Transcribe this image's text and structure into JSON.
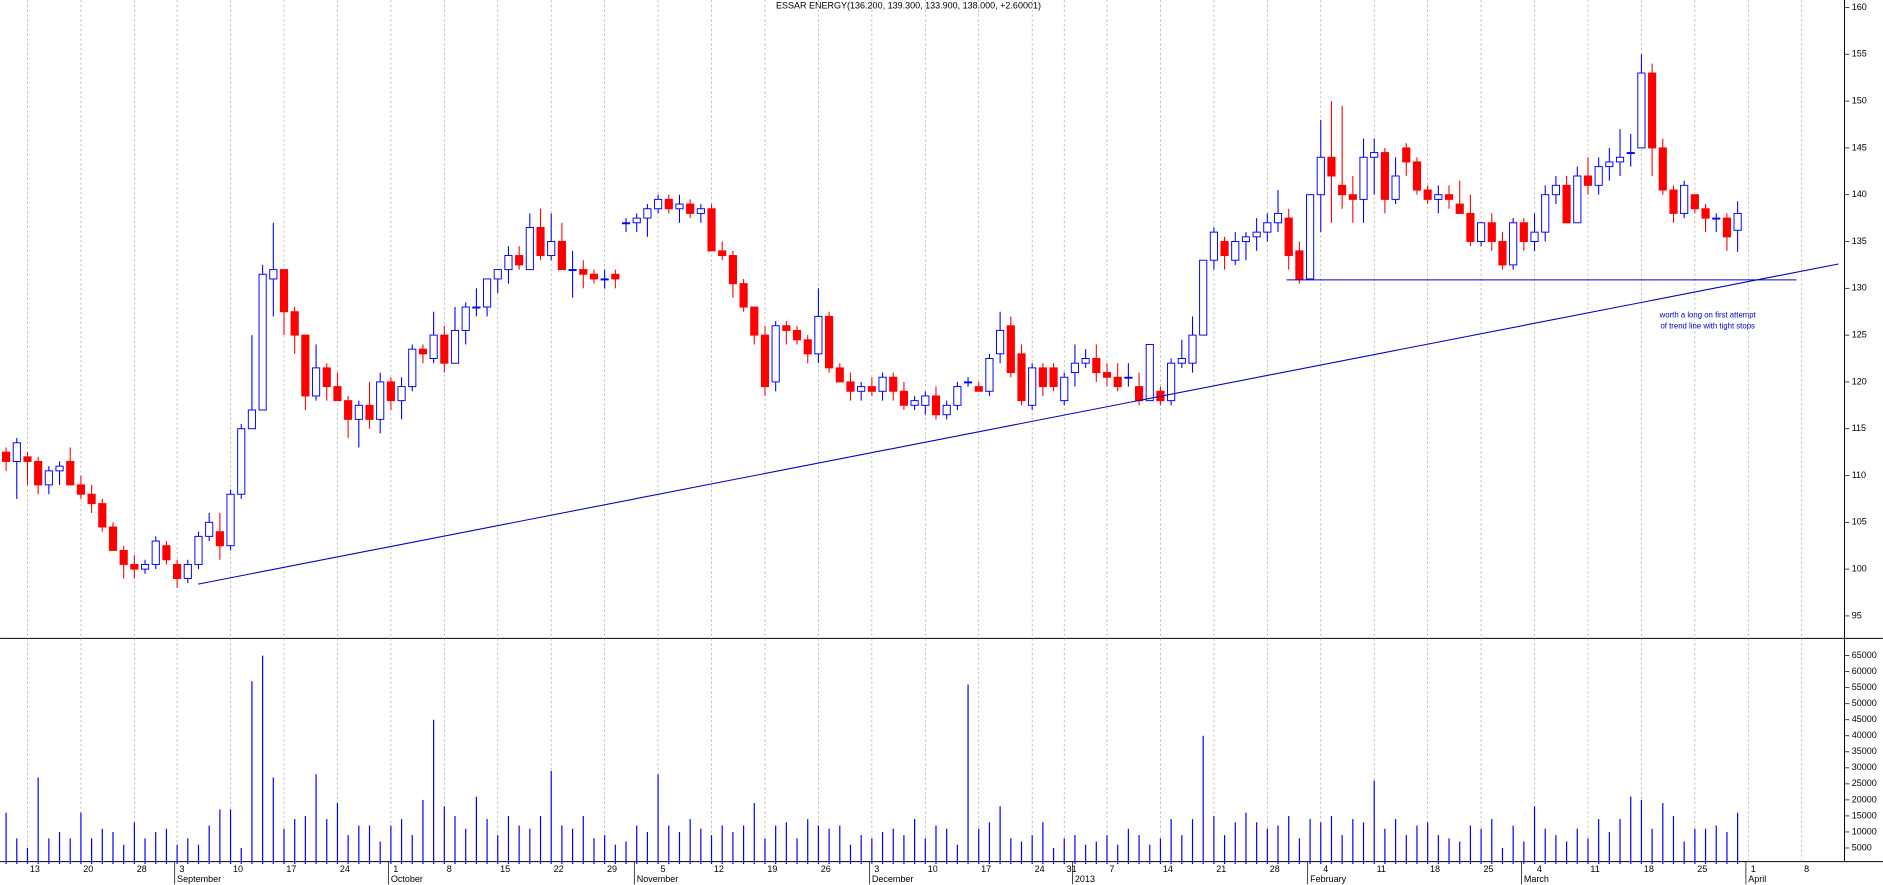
{
  "chart_data": [
    {
      "type": "candlestick",
      "title": "ESSAR ENERGY(136.200, 139.300, 133.900, 138.000, +2.60001)",
      "annotation": [
        "worth a long on first attempt",
        "of trend line with tight stops"
      ],
      "up_color": "#0000ff",
      "down_color": "#ff0000",
      "grid": true,
      "ylim": [
        92.6,
        160.8
      ],
      "yticks": [
        95,
        100,
        105,
        110,
        115,
        120,
        125,
        130,
        135,
        140,
        145,
        150,
        155,
        160
      ],
      "trendlines": [
        {
          "color": "#0000cc",
          "values": [
            98.4,
            132.6
          ]
        },
        {
          "color": "#0000cc",
          "values": [
            130.9,
            130.9
          ]
        }
      ],
      "categories": [
        null,
        null,
        "13",
        null,
        null,
        null,
        null,
        "20",
        null,
        null,
        null,
        null,
        "28",
        null,
        null,
        null,
        "3",
        null,
        null,
        null,
        null,
        "10",
        null,
        null,
        null,
        null,
        "17",
        null,
        null,
        null,
        null,
        "24",
        null,
        null,
        null,
        null,
        "1",
        null,
        null,
        null,
        null,
        "8",
        null,
        null,
        null,
        null,
        "15",
        null,
        null,
        null,
        null,
        "22",
        null,
        null,
        null,
        null,
        "29",
        null,
        null,
        null,
        null,
        "5",
        null,
        null,
        null,
        null,
        "12",
        null,
        null,
        null,
        null,
        "19",
        null,
        null,
        null,
        null,
        "26",
        null,
        null,
        null,
        null,
        "3",
        null,
        null,
        null,
        null,
        "10",
        null,
        null,
        null,
        null,
        "17",
        null,
        null,
        null,
        null,
        "24",
        null,
        null,
        "31",
        null,
        null,
        null,
        "7",
        null,
        null,
        null,
        null,
        "14",
        null,
        null,
        null,
        null,
        "21",
        null,
        null,
        null,
        null,
        "28",
        null,
        null,
        null,
        null,
        "4",
        null,
        null,
        null,
        null,
        "11",
        null,
        null,
        null,
        null,
        "18",
        null,
        null,
        null,
        null,
        "25",
        null,
        null,
        null,
        null,
        "4",
        null,
        null,
        null,
        null,
        "11",
        null,
        null,
        null,
        null,
        "18",
        null,
        null,
        null,
        null,
        "25",
        null,
        null,
        null,
        null,
        "1",
        null,
        null,
        null,
        null,
        "8",
        null
      ],
      "months": [
        null,
        null,
        null,
        null,
        null,
        null,
        null,
        null,
        null,
        null,
        null,
        null,
        null,
        null,
        null,
        null,
        "September",
        null,
        null,
        null,
        null,
        null,
        null,
        null,
        null,
        null,
        null,
        null,
        null,
        null,
        null,
        null,
        null,
        null,
        null,
        null,
        "October",
        null,
        null,
        null,
        null,
        null,
        null,
        null,
        null,
        null,
        null,
        null,
        null,
        null,
        null,
        null,
        null,
        null,
        null,
        null,
        null,
        null,
        null,
        "November",
        null,
        null,
        null,
        null,
        null,
        null,
        null,
        null,
        null,
        null,
        null,
        null,
        null,
        null,
        null,
        null,
        null,
        null,
        null,
        null,
        null,
        "December",
        null,
        null,
        null,
        null,
        null,
        null,
        null,
        null,
        null,
        null,
        null,
        null,
        null,
        null,
        null,
        null,
        null,
        null,
        "2013",
        null,
        null,
        null,
        null,
        null,
        null,
        null,
        null,
        null,
        null,
        null,
        null,
        null,
        null,
        null,
        null,
        null,
        null,
        null,
        null,
        null,
        "February",
        null,
        null,
        null,
        null,
        null,
        null,
        null,
        null,
        null,
        null,
        null,
        null,
        null,
        null,
        null,
        null,
        null,
        null,
        null,
        "March",
        null,
        null,
        null,
        null,
        null,
        null,
        null,
        null,
        null,
        null,
        null,
        null,
        null,
        null,
        null,
        null,
        null,
        null,
        null,
        null,
        "April",
        null,
        null,
        null,
        null,
        null,
        null
      ],
      "open": [
        112.5,
        111.5,
        112,
        111.5,
        109,
        110.5,
        111.5,
        109,
        108,
        107,
        104.5,
        102,
        100.5,
        100,
        100.5,
        102.5,
        100.5,
        99,
        100.5,
        103.5,
        104,
        102.5,
        108,
        115,
        117,
        131,
        132,
        127.5,
        125,
        118.5,
        121.5,
        119.5,
        118,
        116,
        117.5,
        116,
        120,
        118,
        119.5,
        123.5,
        122.5,
        125,
        122,
        125.5,
        128,
        128,
        131,
        132,
        133.5,
        132,
        136.5,
        133.5,
        135,
        132,
        132,
        131.5,
        131,
        131.5,
        137,
        137,
        137.5,
        138.5,
        139.5,
        138.5,
        139,
        138,
        138.5,
        134,
        133.5,
        130.5,
        128,
        125,
        120,
        126,
        125.5,
        124.5,
        123,
        127,
        121.5,
        120,
        119,
        119.5,
        119,
        120.5,
        119,
        117.5,
        117.5,
        118.5,
        116.5,
        117.5,
        120,
        119.5,
        119,
        123,
        126,
        123,
        117.5,
        121.5,
        121.5,
        118,
        121,
        122,
        122.5,
        121,
        120.5,
        120.5,
        119.5,
        118,
        119,
        118,
        122,
        122,
        125,
        133,
        135,
        133,
        135,
        135.5,
        136,
        137,
        137.5,
        134,
        131,
        140,
        144,
        141,
        140,
        139.5,
        144,
        144.5,
        139.5,
        145,
        143.5,
        140.5,
        139.5,
        140,
        139,
        138,
        135,
        137,
        135,
        132.5,
        137,
        135,
        136,
        140,
        141,
        137,
        142,
        141,
        143,
        143.5,
        144.5,
        145,
        153,
        145,
        140.5,
        138,
        140,
        138.5,
        137.5,
        137.5,
        136.2,
        null,
        null,
        null,
        null,
        null,
        null,
        null
      ],
      "high": [
        113,
        114,
        112.5,
        112,
        111,
        111.5,
        113,
        110,
        109,
        107.5,
        105,
        102.5,
        101.5,
        101,
        103.5,
        103,
        101,
        101,
        104,
        106,
        106,
        108.5,
        115.5,
        125,
        132.5,
        137,
        132,
        128,
        125,
        124,
        122,
        121,
        118.5,
        118,
        120,
        121,
        120.5,
        120.5,
        124,
        124,
        127.5,
        126,
        128,
        128.5,
        130,
        131,
        132,
        134.5,
        134.5,
        138,
        138.5,
        138,
        137,
        134,
        133,
        132,
        132,
        132,
        137.5,
        138,
        139,
        140,
        140,
        140,
        139.5,
        139,
        139,
        135,
        134,
        131,
        128,
        126,
        126.5,
        126.5,
        126,
        125,
        130,
        127.5,
        122,
        121,
        120,
        120.5,
        121,
        121,
        120,
        118.5,
        119,
        119.5,
        118,
        120,
        120.5,
        120,
        123,
        127.5,
        127,
        124,
        122,
        122,
        122,
        121,
        124,
        123.5,
        124,
        122,
        122,
        122,
        121,
        124,
        119.5,
        122.5,
        124.5,
        127,
        133,
        136.5,
        135.5,
        136,
        136,
        137.5,
        138,
        140.5,
        138.5,
        135,
        140,
        148,
        150,
        149.5,
        142,
        146,
        146,
        145,
        144,
        145.5,
        144,
        141,
        141,
        141,
        141.5,
        140,
        137,
        138,
        136,
        137.5,
        137.5,
        138,
        141,
        142,
        142,
        143,
        144,
        144,
        145,
        147,
        146.5,
        155,
        154,
        146,
        141,
        141.5,
        140,
        139,
        138,
        138,
        139.3,
        null,
        null,
        null,
        null,
        null,
        null,
        null
      ],
      "low": [
        110.5,
        107.5,
        109,
        108,
        108,
        109,
        109,
        107.5,
        106,
        104,
        102,
        99,
        99,
        99.5,
        100,
        100.5,
        98,
        98.5,
        100,
        103,
        101,
        102,
        107.5,
        115,
        117,
        127,
        125,
        123,
        117,
        118,
        118,
        118,
        114,
        113,
        115,
        114.5,
        117,
        116,
        119,
        122,
        122,
        121,
        122,
        124,
        127,
        127,
        129.5,
        130.5,
        132,
        132,
        133,
        133,
        132,
        129,
        130,
        130.5,
        130,
        130,
        136,
        136,
        135.5,
        138,
        138,
        137,
        137.5,
        137,
        134,
        133,
        129,
        127.5,
        124,
        118.5,
        119,
        124,
        124,
        122,
        122,
        121,
        120,
        118,
        118,
        118.5,
        118,
        118,
        117,
        117,
        116.5,
        116,
        116,
        117,
        119.5,
        119,
        118.5,
        122,
        120.5,
        117.5,
        117,
        118.5,
        119,
        117.5,
        119.5,
        121.5,
        120,
        119.5,
        119,
        119.5,
        117.5,
        118,
        117.5,
        117.5,
        121.5,
        121,
        125,
        132,
        132,
        132.5,
        133,
        134,
        135,
        136,
        132,
        130.5,
        131,
        136,
        137,
        138.5,
        137,
        137,
        140,
        138,
        139,
        142,
        140,
        139,
        138,
        138.5,
        138,
        134.5,
        134.5,
        134,
        132,
        132,
        134,
        134,
        135,
        139,
        137,
        137,
        140,
        140,
        141.5,
        142,
        143,
        145,
        142,
        140,
        137,
        137.5,
        138,
        136,
        136,
        134,
        133.9,
        null,
        null,
        null,
        null,
        null,
        null,
        null
      ],
      "close": [
        111.5,
        113.5,
        111.5,
        109,
        110.5,
        111,
        109,
        108,
        107,
        104.5,
        102,
        100.5,
        100,
        100.5,
        103,
        101,
        99,
        100.5,
        103.5,
        105,
        102.5,
        108,
        115,
        117,
        131.5,
        132,
        127.5,
        125,
        118.5,
        121.5,
        119.5,
        118,
        116,
        117.5,
        116,
        120,
        118,
        119.5,
        123.5,
        123,
        125,
        122,
        125.5,
        128,
        128,
        131,
        132,
        133.5,
        132.5,
        136.5,
        133.5,
        135,
        132,
        132,
        131.5,
        131,
        131,
        131,
        137,
        137.5,
        138.5,
        139.5,
        138.5,
        139,
        138,
        138.5,
        134,
        133.5,
        130.5,
        128,
        125,
        119.5,
        126,
        125.5,
        124.5,
        123,
        127,
        121.5,
        120,
        119,
        119.5,
        119,
        120.5,
        119,
        117.5,
        118,
        118.5,
        116.5,
        117.5,
        119.5,
        120,
        119,
        122.5,
        125.5,
        121,
        118,
        121.5,
        119.5,
        119.5,
        120.5,
        122,
        122.5,
        121,
        120.5,
        119.5,
        120.5,
        118,
        124,
        118,
        122,
        122.5,
        125,
        133,
        136,
        133.5,
        135,
        135.5,
        136,
        137,
        138,
        133.5,
        131,
        140,
        144,
        142,
        140,
        139.5,
        144,
        144.5,
        139.5,
        142,
        143.5,
        140.5,
        139.5,
        140,
        139.5,
        138,
        135,
        137,
        135,
        132.5,
        137,
        135,
        136,
        140,
        141,
        137,
        142,
        141,
        143,
        143.5,
        144,
        144.5,
        153,
        145,
        140.5,
        138,
        141,
        138.5,
        137.5,
        137.5,
        135.5,
        138,
        null,
        null,
        null,
        null,
        null,
        null,
        null
      ]
    },
    {
      "type": "volume",
      "color": "#0000ff",
      "ylim": [
        0,
        70000
      ],
      "yticks": [
        5000,
        10000,
        15000,
        20000,
        25000,
        30000,
        35000,
        40000,
        45000,
        50000,
        55000,
        60000,
        65000
      ],
      "values": [
        16000,
        8000,
        5000,
        27000,
        8000,
        10000,
        8000,
        16000,
        8000,
        11000,
        10000,
        6000,
        13000,
        8000,
        10000,
        11000,
        6000,
        8000,
        6000,
        12000,
        17000,
        17000,
        5000,
        57000,
        65000,
        27000,
        11000,
        14000,
        15000,
        28000,
        14000,
        19000,
        9000,
        12000,
        12000,
        7000,
        12000,
        14000,
        9000,
        20000,
        45000,
        18000,
        15000,
        11000,
        21000,
        14000,
        9000,
        15000,
        12000,
        11000,
        15000,
        29000,
        12000,
        11000,
        15000,
        8000,
        9000,
        6000,
        7000,
        12000,
        10000,
        28000,
        12000,
        10000,
        14000,
        11000,
        9000,
        12000,
        10000,
        12000,
        19000,
        8000,
        12000,
        13000,
        8000,
        14000,
        12000,
        11000,
        12000,
        6000,
        9000,
        8000,
        10000,
        11000,
        9000,
        14000,
        8000,
        12000,
        11000,
        6000,
        56000,
        11000,
        13000,
        18000,
        8000,
        7000,
        9000,
        13000,
        5000,
        8000,
        9000,
        6000,
        7000,
        9000,
        6000,
        11000,
        9000,
        6000,
        8000,
        14000,
        9000,
        14000,
        40000,
        15000,
        9000,
        13000,
        16000,
        13000,
        11000,
        12000,
        15000,
        8000,
        14000,
        13000,
        15000,
        9000,
        14000,
        13000,
        26000,
        11000,
        14000,
        9000,
        12000,
        13000,
        9000,
        8000,
        7000,
        12000,
        11000,
        14000,
        5000,
        12000,
        7000,
        18000,
        11000,
        9000,
        7000,
        11000,
        8000,
        14000,
        10000,
        14000,
        21000,
        20000,
        11000,
        19000,
        15000,
        7000,
        11000,
        11000,
        12000,
        10000,
        16000,
        null,
        null,
        null,
        null,
        null,
        null,
        null
      ]
    }
  ]
}
